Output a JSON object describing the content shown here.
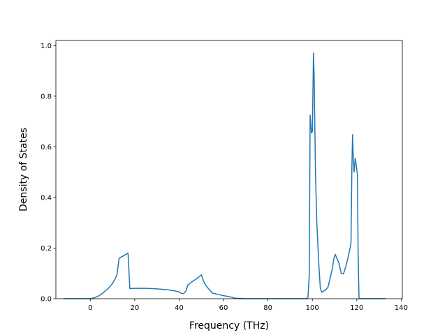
{
  "chart_data": {
    "type": "line",
    "title": "",
    "xlabel": "Frequency (THz)",
    "ylabel": "Density of States",
    "xlim": [
      -15.5,
      140.5
    ],
    "ylim": [
      0,
      1.02
    ],
    "xticks": [
      0,
      20,
      40,
      60,
      80,
      100,
      120,
      140
    ],
    "yticks": [
      0.0,
      0.2,
      0.4,
      0.6,
      0.8,
      1.0
    ],
    "xtick_labels": [
      "0",
      "20",
      "40",
      "60",
      "80",
      "100",
      "120",
      "140"
    ],
    "ytick_labels": [
      "0.0",
      "0.2",
      "0.4",
      "0.6",
      "0.8",
      "1.0"
    ],
    "grid": false,
    "series": [
      {
        "color": "#1f77b4",
        "x": [
          -12,
          0,
          2,
          4,
          6,
          8,
          10,
          11,
          12,
          13,
          15,
          17,
          17.8,
          20,
          25,
          30,
          35,
          38,
          40,
          41,
          42,
          43,
          44,
          46,
          48,
          49,
          50,
          51,
          52,
          53,
          55,
          58,
          60,
          62,
          64,
          65,
          70,
          80,
          90,
          97,
          98,
          98.6,
          99,
          99.6,
          100,
          100.5,
          100.8,
          101.4,
          102,
          103,
          103.6,
          104.3,
          105,
          106,
          107,
          108,
          109,
          109.7,
          110.3,
          111,
          112,
          113,
          114,
          115,
          116,
          117,
          117.4,
          117.8,
          118.1,
          118.5,
          118.8,
          119.3,
          119.8,
          120.3,
          120.6,
          121,
          121.5,
          125,
          130,
          133
        ],
        "y": [
          0,
          0,
          0.004,
          0.012,
          0.025,
          0.04,
          0.06,
          0.075,
          0.095,
          0.16,
          0.17,
          0.18,
          0.04,
          0.041,
          0.041,
          0.039,
          0.035,
          0.031,
          0.027,
          0.021,
          0.02,
          0.03,
          0.055,
          0.068,
          0.08,
          0.087,
          0.094,
          0.07,
          0.052,
          0.042,
          0.022,
          0.016,
          0.012,
          0.009,
          0.005,
          0.002,
          0,
          0,
          0,
          0,
          0.004,
          0.09,
          0.725,
          0.655,
          0.66,
          0.97,
          0.88,
          0.5,
          0.3,
          0.12,
          0.04,
          0.025,
          0.03,
          0.035,
          0.045,
          0.08,
          0.12,
          0.16,
          0.175,
          0.16,
          0.14,
          0.1,
          0.098,
          0.125,
          0.16,
          0.2,
          0.22,
          0.52,
          0.648,
          0.54,
          0.5,
          0.555,
          0.525,
          0.49,
          0.18,
          0,
          0,
          0,
          0,
          0
        ]
      }
    ]
  }
}
